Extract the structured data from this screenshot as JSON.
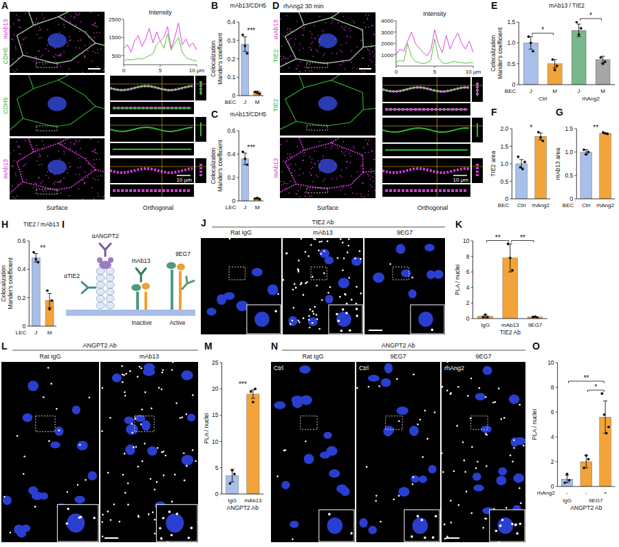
{
  "chart_data": [
    {
      "type": "line",
      "title": "Intensity",
      "x": [
        0,
        0.5,
        1,
        1.5,
        2,
        2.5,
        3,
        3.5,
        4,
        4.5,
        5,
        5.5,
        6,
        6.5,
        7,
        7.5,
        8,
        8.5,
        9,
        9.5,
        10
      ],
      "xlim": [
        0,
        10
      ],
      "xticks": [
        0,
        5,
        {
          "value": 10,
          "label": "10 μm"
        }
      ],
      "ylim": [
        0,
        2500
      ],
      "yticks": [
        500,
        1500,
        2500
      ],
      "series": [
        {
          "color": "#e040e0",
          "values": [
            900,
            1100,
            700,
            1300,
            1600,
            1000,
            1400,
            2000,
            1200,
            1800,
            1300,
            1500,
            2100,
            900,
            1500,
            2300,
            1100,
            1400,
            1000,
            1200,
            800
          ]
        },
        {
          "color": "#55c23a",
          "values": [
            200,
            300,
            250,
            300,
            350,
            300,
            400,
            500,
            600,
            1100,
            1300,
            900,
            1700,
            800,
            1200,
            1500,
            700,
            400,
            300,
            250,
            200
          ]
        }
      ]
    },
    {
      "type": "bar",
      "panel": "B",
      "title": "mAb13/CDH5",
      "y_label": "Colocalization Mander's coefficient",
      "row_label": "BEC",
      "categories": [
        "J",
        "M"
      ],
      "values": [
        0.28,
        0.02
      ],
      "errors": [
        0.04,
        0.005
      ],
      "points": [
        [
          0.33,
          0.27,
          0.23
        ],
        [
          0.02,
          0.015,
          0.01
        ]
      ],
      "colors": [
        "#a8bfe9",
        "#f2a33a"
      ],
      "ylim": [
        0,
        0.4
      ],
      "yticks": [
        0,
        0.1,
        0.2,
        0.3,
        0.4
      ],
      "significance": [
        {
          "label": "***",
          "between": [
            0,
            1
          ]
        }
      ]
    },
    {
      "type": "bar",
      "panel": "C",
      "title": "mAb13/CDH5",
      "y_label": "Colocalization Mander's coefficient",
      "row_label": "LEC",
      "categories": [
        "J",
        "M"
      ],
      "values": [
        0.36,
        0.02
      ],
      "errors": [
        0.05,
        0.005
      ],
      "points": [
        [
          0.42,
          0.36,
          0.31
        ],
        [
          0.02,
          0.025,
          0.015
        ]
      ],
      "colors": [
        "#a8bfe9",
        "#f2a33a"
      ],
      "ylim": [
        0,
        0.6
      ],
      "yticks": [
        0,
        0.2,
        0.4,
        0.6
      ],
      "significance": [
        {
          "label": "***",
          "between": [
            0,
            1
          ]
        }
      ]
    },
    {
      "type": "line",
      "title": "Intensity",
      "x": [
        0,
        0.5,
        1,
        1.5,
        2,
        2.5,
        3,
        3.5,
        4,
        4.5,
        5,
        5.5,
        6,
        6.5,
        7,
        7.5,
        8,
        8.5,
        9,
        9.5,
        10
      ],
      "xlim": [
        0,
        10
      ],
      "xticks": [
        0,
        5,
        {
          "value": 10,
          "label": "10 μm"
        }
      ],
      "ylim": [
        0,
        4000
      ],
      "yticks": [
        1000,
        2000,
        3000,
        4000
      ],
      "series": [
        {
          "color": "#e040e0",
          "values": [
            1000,
            1500,
            1300,
            2200,
            3000,
            2000,
            1600,
            1200,
            900,
            1400,
            3200,
            1900,
            1200,
            2700,
            1500,
            2300,
            2900,
            2000,
            1500,
            2200,
            1200
          ]
        },
        {
          "color": "#55c23a",
          "values": [
            300,
            500,
            400,
            2000,
            800,
            400,
            300,
            200,
            300,
            500,
            2400,
            700,
            300,
            200,
            300,
            400,
            350,
            300,
            250,
            300,
            300
          ]
        }
      ]
    },
    {
      "type": "bar",
      "panel": "E",
      "title": "mAb13 / TIE2",
      "y_label": "Colocalization Mander's coefficient",
      "row_label": "BEC",
      "categories": [
        "J",
        "M",
        "J",
        "M"
      ],
      "values": [
        1.0,
        0.5,
        1.3,
        0.6
      ],
      "errors": [
        0.15,
        0.1,
        0.15,
        0.08
      ],
      "points": [
        [
          1.15,
          1.0,
          0.8
        ],
        [
          0.6,
          0.35,
          0.45
        ],
        [
          1.5,
          1.2,
          1.35
        ],
        [
          0.65,
          0.5,
          0.55
        ]
      ],
      "colors": [
        "#a8bfe9",
        "#f2a33a",
        "#77b78a",
        "#a6a6a6"
      ],
      "groups": [
        {
          "label": "Ctrl",
          "span": [
            0,
            1
          ]
        },
        {
          "label": "rhAng2",
          "span": [
            2,
            3
          ]
        }
      ],
      "ylim": [
        0,
        1.5
      ],
      "yticks": [
        0,
        0.5,
        {
          "value": 1,
          "label": "1.0"
        },
        1.5
      ],
      "significance": [
        {
          "label": "*",
          "between": [
            0,
            1
          ]
        },
        {
          "label": "*",
          "between": [
            2,
            3
          ]
        }
      ]
    },
    {
      "type": "bar",
      "panel": "F",
      "y_label": "TIE2 area",
      "row_label": "BEC",
      "categories": [
        "Ctrl",
        "rhAng2"
      ],
      "values": [
        1.0,
        1.78
      ],
      "errors": [
        0.12,
        0.1
      ],
      "points": [
        [
          1.2,
          0.9,
          0.85,
          1.05
        ],
        [
          1.9,
          1.75,
          1.65
        ]
      ],
      "colors": [
        "#a8bfe9",
        "#f2a33a"
      ],
      "ylim": [
        0,
        2
      ],
      "yticks": [
        0,
        0.5,
        {
          "value": 1,
          "label": "1.0"
        },
        1.5,
        {
          "value": 2,
          "label": "2.0"
        }
      ],
      "significance": [
        {
          "label": "*",
          "between": [
            0,
            1
          ]
        }
      ]
    },
    {
      "type": "bar",
      "panel": "G",
      "y_label": "mAb13 area",
      "row_label": "BEC",
      "categories": [
        "Ctrl",
        "rhAng2"
      ],
      "values": [
        1.0,
        1.4
      ],
      "errors": [
        0.05,
        0.01
      ],
      "points": [
        [
          1.05,
          0.95,
          1.0
        ],
        [
          1.42,
          1.4,
          1.39
        ]
      ],
      "colors": [
        "#a8bfe9",
        "#f2a33a"
      ],
      "ylim": [
        0,
        1.5
      ],
      "yticks": [
        0,
        0.5,
        {
          "value": 1,
          "label": "1.0"
        },
        1.5
      ],
      "significance": [
        {
          "label": "**",
          "between": [
            0,
            1
          ]
        }
      ]
    },
    {
      "type": "bar",
      "panel": "H",
      "title": "TIE2 / mAb13",
      "y_label": "Colocalization Mander's coefficient",
      "row_label": "LEC",
      "categories": [
        "J",
        "M"
      ],
      "values": [
        0.48,
        0.18
      ],
      "errors": [
        0.03,
        0.05
      ],
      "points": [
        [
          0.52,
          0.47,
          0.45
        ],
        [
          0.25,
          0.12,
          0.18
        ]
      ],
      "colors": [
        "#a8bfe9",
        "#f2a33a"
      ],
      "ylim": [
        0,
        0.6
      ],
      "yticks": [
        0,
        0.2,
        0.4,
        0.6
      ],
      "significance": [
        {
          "label": "**",
          "between": [
            0,
            1
          ]
        }
      ]
    },
    {
      "type": "bar",
      "panel": "K",
      "y_label": "PLA / nuclei",
      "x_label": "TIE2 Ab",
      "categories": [
        "IgG",
        "mAb13",
        "9EG7"
      ],
      "values": [
        0.3,
        7.8,
        0.2
      ],
      "errors": [
        0.2,
        1.8,
        0.05
      ],
      "points": [
        [
          0.2,
          0.5,
          0.2
        ],
        [
          9.6,
          7.8,
          6.2
        ],
        [
          0.2,
          0.25,
          0.15
        ]
      ],
      "color": "#f2a33a",
      "ylim": [
        0,
        10
      ],
      "yticks": [
        0,
        2,
        4,
        6,
        8,
        10
      ],
      "significance": [
        {
          "label": "**",
          "between": [
            0,
            1
          ]
        },
        {
          "label": "**",
          "between": [
            1,
            2
          ]
        }
      ]
    },
    {
      "type": "bar",
      "panel": "M",
      "y_label": "PLA / nuclei",
      "x_label": "ANGPT2 Ab",
      "categories": [
        "IgG",
        "mAb13"
      ],
      "values": [
        3.5,
        19
      ],
      "errors": [
        1.2,
        0.8
      ],
      "points": [
        [
          2,
          4.5,
          3.8
        ],
        [
          19.5,
          17.5,
          20
        ]
      ],
      "colors": [
        "#a8bfe9",
        "#f2a33a"
      ],
      "ylim": [
        0,
        25
      ],
      "yticks": [
        0,
        5,
        10,
        15,
        20,
        25
      ],
      "significance": [
        {
          "label": "***",
          "between": [
            0,
            1
          ]
        }
      ]
    },
    {
      "type": "bar",
      "panel": "O",
      "y_label": "PLA / nuclei",
      "x_label": "ANGPT2 Ab",
      "row_label": "rhAng2",
      "categories": [
        "-",
        "-",
        "+"
      ],
      "values": [
        0.6,
        2.0,
        5.6
      ],
      "errors": [
        0.3,
        0.5,
        1.3
      ],
      "points": [
        [
          0.3,
          1.0,
          0.5
        ],
        [
          1.5,
          2.5,
          2.2
        ],
        [
          7.5,
          5.8,
          4.3,
          4.8
        ]
      ],
      "colors": [
        "#a8bfe9",
        "#f2a33a",
        "#f2a33a"
      ],
      "groups": [
        {
          "label": "IgG",
          "span": [
            0,
            0
          ]
        },
        {
          "label": "9EG7",
          "span": [
            1,
            2
          ]
        }
      ],
      "ylim": [
        0,
        10
      ],
      "yticks": [
        0,
        2,
        4,
        6,
        8,
        10
      ],
      "significance": [
        {
          "label": "**",
          "between": [
            0,
            2
          ]
        },
        {
          "label": "*",
          "between": [
            1,
            2
          ]
        }
      ]
    }
  ],
  "image_panels": [
    {
      "letter": "A",
      "channels": [
        {
          "name": "CDH5",
          "color": "#2fb52f"
        },
        {
          "name": "mAb13",
          "color": "#d63ad6"
        }
      ],
      "views": [
        "Surface",
        "Orthogonal"
      ],
      "scale_bar": "10 μm"
    },
    {
      "letter": "D",
      "title": "rhAng2 30 min",
      "channels": [
        {
          "name": "TIE2",
          "color": "#2fb52f"
        },
        {
          "name": "mAb13",
          "color": "#d63ad6"
        }
      ],
      "views": [
        "Surface",
        "Orthogonal"
      ],
      "scale_bar": "10 μm"
    },
    {
      "letter": "J",
      "title": "TIE2 Ab",
      "tiles": [
        {
          "label": "Rat IgG"
        },
        {
          "label": "mAb13"
        },
        {
          "label": "9EG7"
        }
      ]
    },
    {
      "letter": "L",
      "title": "ANGPT2 Ab",
      "tiles": [
        {
          "label": "Rat IgG"
        },
        {
          "label": "mAb13"
        }
      ]
    },
    {
      "letter": "N",
      "title": "ANGPT2 Ab",
      "tiles": [
        {
          "label": "Rat IgG",
          "condition": "Ctrl"
        },
        {
          "label": "9EG7",
          "condition": "Ctrl"
        },
        {
          "label": "9EG7",
          "condition": "rhAng2"
        }
      ]
    }
  ],
  "diagram": {
    "letter": "I",
    "labels": [
      "αANGPT2",
      "mAb13",
      "9EG7",
      "αTIE2",
      "Inactive",
      "Active"
    ]
  }
}
